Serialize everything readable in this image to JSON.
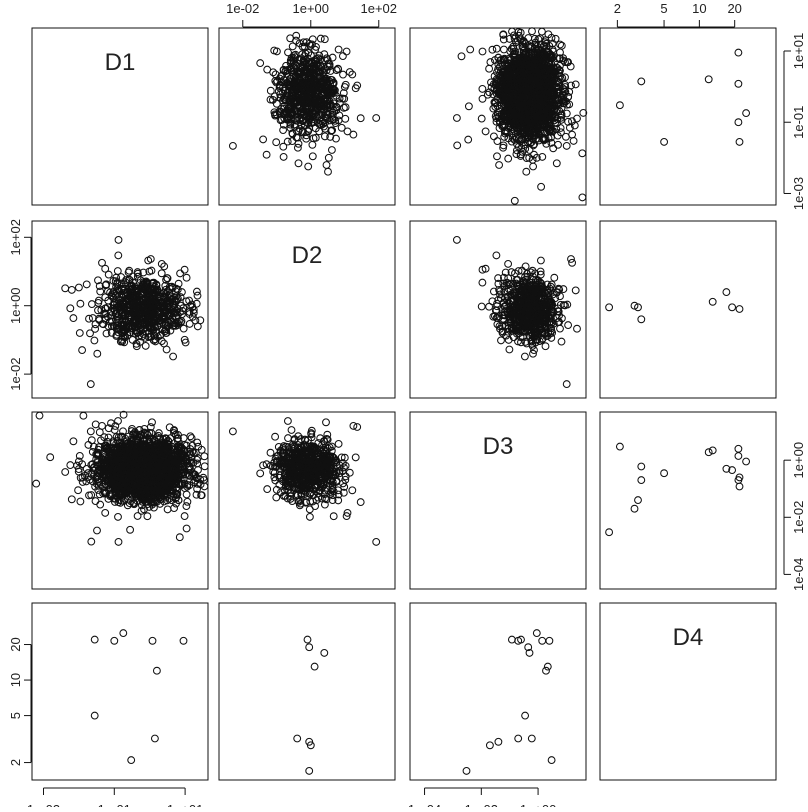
{
  "chart_data": {
    "type": "scatter",
    "title": "",
    "variables": [
      "D1",
      "D2",
      "D3",
      "D4"
    ],
    "variable_scales": [
      {
        "name": "D1",
        "scale": "log",
        "range": [
          0.0007,
          30
        ],
        "ticks": [
          0.001,
          0.1,
          10
        ],
        "tick_labels": [
          "1e-03",
          "1e-01",
          "1e+01"
        ]
      },
      {
        "name": "D2",
        "scale": "log",
        "range": [
          0.003,
          200
        ],
        "ticks": [
          0.01,
          1,
          100
        ],
        "tick_labels": [
          "1e-02",
          "1e+00",
          "1e+02"
        ]
      },
      {
        "name": "D3",
        "scale": "log",
        "range": [
          5e-05,
          30
        ],
        "ticks": [
          0.0001,
          0.01,
          1
        ],
        "tick_labels": [
          "1e-04",
          "1e-02",
          "1e+00"
        ]
      },
      {
        "name": "D4",
        "scale": "log",
        "range": [
          1.6,
          40
        ],
        "ticks": [
          2,
          5,
          10,
          20
        ],
        "tick_labels": [
          "2",
          "5",
          "10",
          "20"
        ]
      }
    ],
    "axis_positions": {
      "top": [
        {
          "variable": "D2",
          "column": 1
        },
        {
          "variable": "D4",
          "column": 3
        }
      ],
      "right": [
        {
          "variable": "D1",
          "row": 0
        },
        {
          "variable": "D3",
          "row": 2
        }
      ],
      "left": [
        {
          "variable": "D2",
          "row": 1
        },
        {
          "variable": "D4",
          "row": 3
        }
      ],
      "bottom": [
        {
          "variable": "D1",
          "column": 0
        },
        {
          "variable": "D3",
          "column": 2
        }
      ]
    },
    "d4_points": [
      {
        "D1": 0.028,
        "D3": 0.12,
        "D4": 22
      },
      {
        "D1": 0.1,
        "D3": 0.2,
        "D4": 21.5
      },
      {
        "D1": 0.18,
        "D3": 0.9,
        "D4": 25
      },
      {
        "D1": 1.2,
        "D3": 1.4,
        "D4": 21.5
      },
      {
        "D1": 1.6,
        "D3": 1.9,
        "D4": 12
      },
      {
        "D1": 9,
        "D3": 2.5,
        "D4": 21.5
      },
      {
        "D1": 0.028,
        "D3": 0.35,
        "D4": 5
      },
      {
        "D1": 0.3,
        "D3": 3,
        "D4": 2.1
      },
      {
        "D1": 1.4,
        "D3": 0.6,
        "D4": 3.2
      },
      {
        "D2": 0.8,
        "D3": 0.25,
        "D4": 22
      },
      {
        "D2": 0.9,
        "D3": 0.45,
        "D4": 19
      },
      {
        "D2": 1.3,
        "D3": 2.2,
        "D4": 13
      },
      {
        "D2": 2.5,
        "D3": 0.5,
        "D4": 17
      },
      {
        "D2": 0.4,
        "D3": 0.2,
        "D4": 3.2
      },
      {
        "D2": 1.0,
        "D3": 0.02,
        "D4": 2.8
      },
      {
        "D2": 0.9,
        "D3": 0.04,
        "D4": 3.0
      },
      {
        "D2": 0.9,
        "D3": 0.003,
        "D4": 1.7
      }
    ],
    "cloud": {
      "n": 2400,
      "D1": {
        "log10_center": -0.2,
        "log10_sd": 0.6
      },
      "D2": {
        "log10_center": -0.1,
        "log10_sd": 0.45
      },
      "D3": {
        "log10_center": -0.3,
        "log10_sd": 0.5
      }
    },
    "grid": false,
    "legend": "none"
  }
}
